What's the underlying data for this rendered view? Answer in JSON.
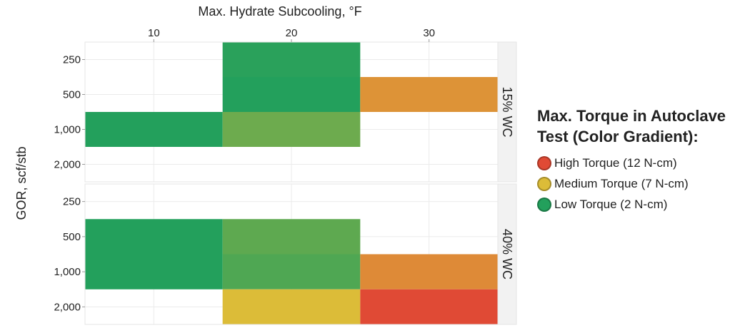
{
  "chart_data": {
    "type": "heatmap",
    "xlabel": "Max. Hydrate Subcooling, °F",
    "ylabel": "GOR, scf/stb",
    "x_ticks": [
      10,
      20,
      30
    ],
    "xlim": [
      5,
      35
    ],
    "y_categories": [
      "250",
      "500",
      "1,000",
      "2,000"
    ],
    "facets": [
      {
        "label": "15% WC",
        "cells": [
          {
            "x_start": 15,
            "x_end": 25,
            "y": "250",
            "torque": 2.2
          },
          {
            "x_start": 15,
            "x_end": 25,
            "y": "500",
            "torque": 2
          },
          {
            "x_start": 25,
            "x_end": 35,
            "y": "500",
            "torque": 8.8
          },
          {
            "x_start": 5,
            "x_end": 15,
            "y": "1,000",
            "torque": 2
          },
          {
            "x_start": 15,
            "x_end": 25,
            "y": "1,000",
            "torque": 4
          }
        ]
      },
      {
        "label": "40% WC",
        "cells": [
          {
            "x_start": 5,
            "x_end": 15,
            "y": "500",
            "torque": 2
          },
          {
            "x_start": 15,
            "x_end": 25,
            "y": "500",
            "torque": 3.6
          },
          {
            "x_start": 5,
            "x_end": 15,
            "y": "1,000",
            "torque": 2
          },
          {
            "x_start": 15,
            "x_end": 25,
            "y": "1,000",
            "torque": 3.2
          },
          {
            "x_start": 25,
            "x_end": 35,
            "y": "1,000",
            "torque": 9.2
          },
          {
            "x_start": 15,
            "x_end": 25,
            "y": "2,000",
            "torque": 7
          },
          {
            "x_start": 25,
            "x_end": 35,
            "y": "2,000",
            "torque": 12
          }
        ]
      }
    ],
    "grid": true,
    "legend": {
      "placement": "right",
      "title": "Max. Torque in Autoclave Test (Color Gradient):",
      "entries": [
        {
          "label": "High Torque (12 N-cm)",
          "color": "#e04a35",
          "value": 12
        },
        {
          "label": "Medium Torque (7 N-cm)",
          "color": "#dcbc38",
          "value": 7
        },
        {
          "label": "Low Torque (2 N-cm)",
          "color": "#23a05c",
          "value": 2
        }
      ]
    }
  }
}
